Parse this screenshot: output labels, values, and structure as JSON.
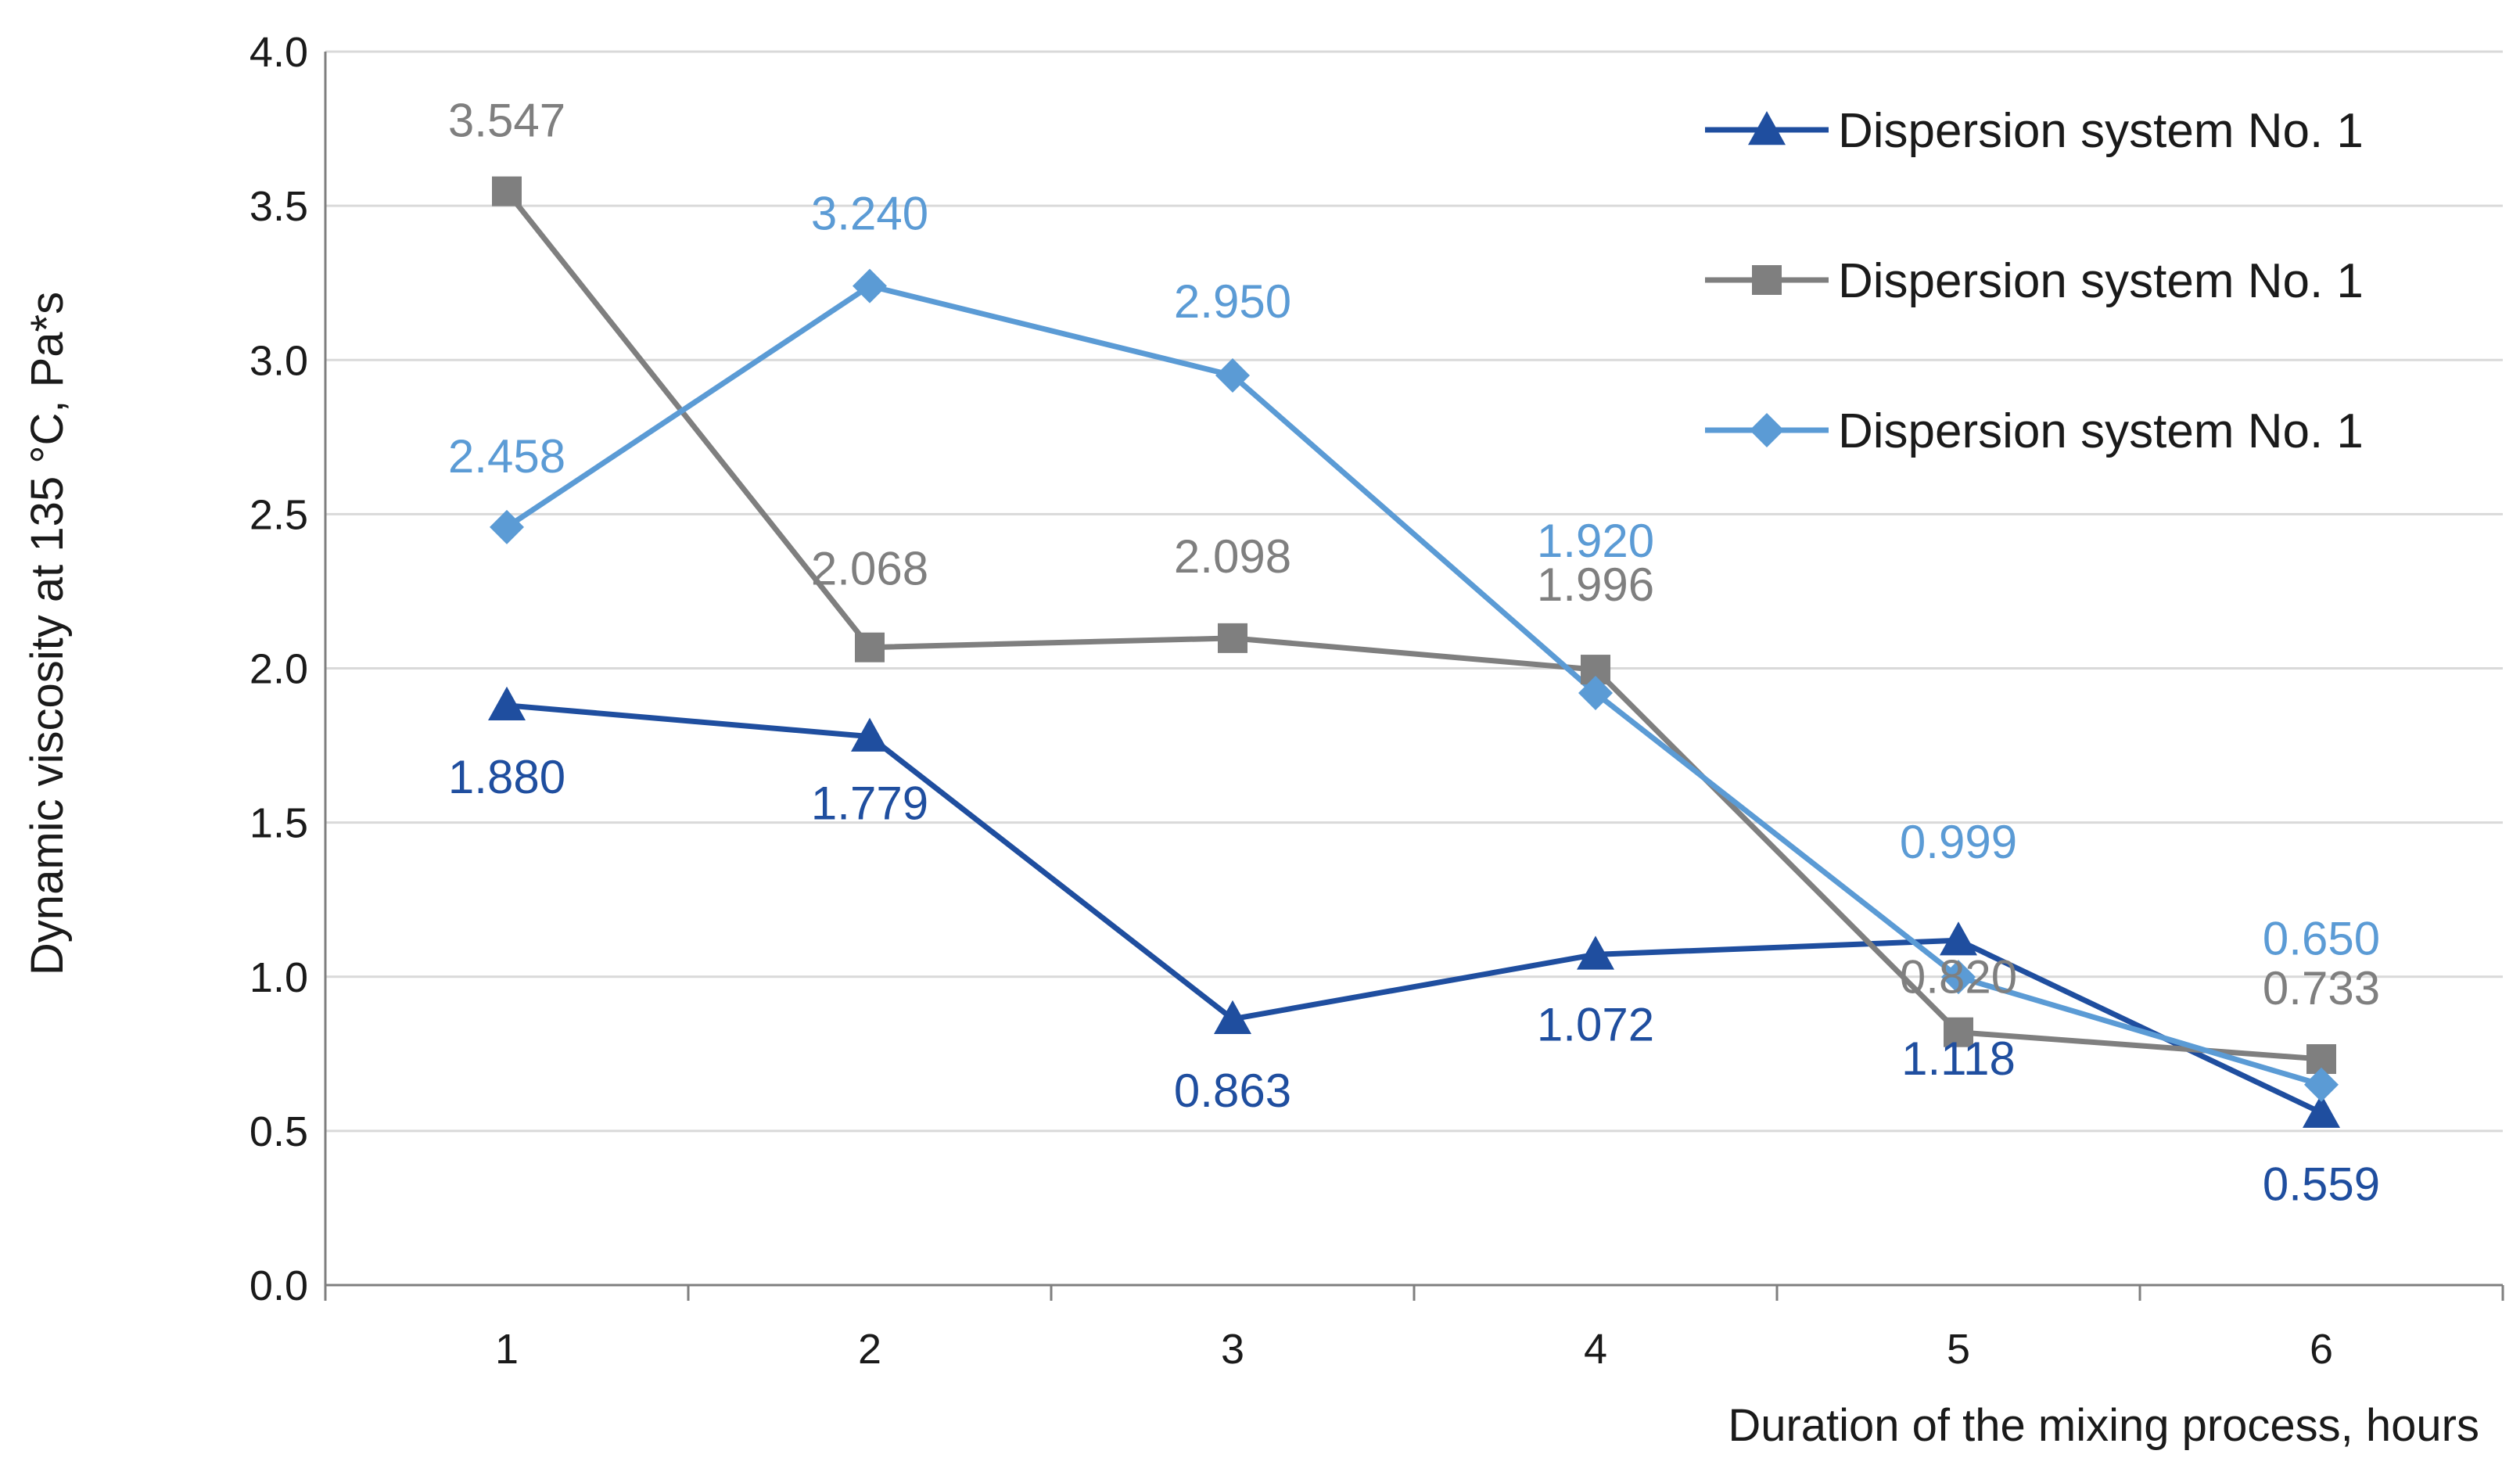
{
  "chart_data": {
    "type": "line",
    "title": "",
    "xlabel": "Duration of the mixing process, hours",
    "ylabel": "Dynamic viscosity at 135 °C, Pa*s",
    "categories": [
      "1",
      "2",
      "3",
      "4",
      "5",
      "6"
    ],
    "ylim": [
      0,
      4
    ],
    "yticks": [
      "0.0",
      "0.5",
      "1.0",
      "1.5",
      "2.0",
      "2.5",
      "3.0",
      "3.5",
      "4.0"
    ],
    "grid": "horizontal",
    "legend_position": "top-right",
    "series": [
      {
        "name": "Dispersion system No. 1",
        "marker": "triangle",
        "color": "#1f4e9f",
        "values": [
          1.88,
          1.779,
          0.863,
          1.072,
          1.118,
          0.559
        ],
        "labels": [
          "1.880",
          "1.779",
          "0.863",
          "1.072",
          "1.118",
          "0.559"
        ]
      },
      {
        "name": "Dispersion system No. 1",
        "marker": "square",
        "color": "#7f7f7f",
        "values": [
          3.547,
          2.068,
          2.098,
          1.996,
          0.82,
          0.733
        ],
        "labels": [
          "3.547",
          "2.068",
          "2.098",
          "1.996",
          "0.820",
          "0.733"
        ]
      },
      {
        "name": "Dispersion system No. 1",
        "marker": "diamond",
        "color": "#5b9bd5",
        "values": [
          2.458,
          3.24,
          2.95,
          1.92,
          0.999,
          0.65
        ],
        "labels": [
          "2.458",
          "3.240",
          "2.950",
          "1.920",
          "0.999",
          "0.650"
        ]
      }
    ]
  }
}
